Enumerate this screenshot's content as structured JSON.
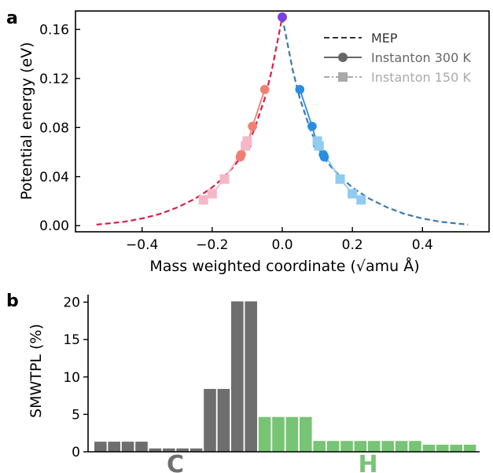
{
  "chart_data": [
    {
      "panel_label": "a",
      "type": "line",
      "xlabel": "Mass weighted coordinate (√amu Å)",
      "ylabel": "Potential energy (eV)",
      "xlim": [
        -0.59,
        0.59
      ],
      "ylim": [
        -0.005,
        0.175
      ],
      "xticks": [
        -0.4,
        -0.2,
        0.0,
        0.2,
        0.4
      ],
      "xtick_labels": [
        "−0.4",
        "−0.2",
        "0.0",
        "0.2",
        "0.4"
      ],
      "yticks": [
        0.0,
        0.04,
        0.08,
        0.12,
        0.16
      ],
      "ytick_labels": [
        "0.00",
        "0.04",
        "0.08",
        "0.12",
        "0.16"
      ],
      "legend_position": "top-right",
      "legend": [
        {
          "name": "MEP",
          "style": "dashed",
          "color": "#333333"
        },
        {
          "name": "Instanton 300 K",
          "style": "solid-circle",
          "color": "#666666"
        },
        {
          "name": "Instanton 150 K",
          "style": "dashdot-square",
          "color": "#aaaaaa"
        }
      ],
      "series": [
        {
          "name": "MEP",
          "side": "left",
          "color": "#d6204a",
          "x": [
            -0.53,
            -0.45,
            -0.4,
            -0.35,
            -0.3,
            -0.25,
            -0.22,
            -0.2,
            -0.17,
            -0.14,
            -0.12,
            -0.1,
            -0.08,
            -0.05,
            -0.03,
            0.0
          ],
          "y": [
            0.0008,
            0.0032,
            0.0058,
            0.0095,
            0.0148,
            0.0218,
            0.0272,
            0.0312,
            0.0385,
            0.0478,
            0.055,
            0.0648,
            0.0782,
            0.1038,
            0.1265,
            0.17
          ]
        },
        {
          "name": "MEP",
          "side": "right",
          "color": "#3a78b0",
          "x": [
            0.0,
            0.03,
            0.05,
            0.08,
            0.1,
            0.12,
            0.14,
            0.17,
            0.2,
            0.22,
            0.25,
            0.3,
            0.35,
            0.4,
            0.45,
            0.53
          ],
          "y": [
            0.17,
            0.1265,
            0.1038,
            0.0782,
            0.0648,
            0.055,
            0.0478,
            0.0385,
            0.0312,
            0.0272,
            0.0218,
            0.0148,
            0.0095,
            0.0058,
            0.0032,
            0.0008
          ]
        },
        {
          "name": "Instanton 300 K",
          "side": "left",
          "color": "#f07e73",
          "x": [
            -0.12,
            -0.117,
            -0.1,
            -0.085,
            -0.05
          ],
          "y": [
            0.056,
            0.058,
            0.066,
            0.081,
            0.111
          ]
        },
        {
          "name": "Instanton 300 K",
          "side": "right",
          "color": "#2a8de0",
          "x": [
            0.05,
            0.085,
            0.1,
            0.117,
            0.12
          ],
          "y": [
            0.111,
            0.081,
            0.066,
            0.058,
            0.056
          ]
        },
        {
          "name": "Instanton 150 K",
          "side": "left",
          "color": "#f5b8c8",
          "x": [
            -0.225,
            -0.2,
            -0.165,
            -0.105,
            -0.1
          ],
          "y": [
            0.021,
            0.026,
            0.038,
            0.065,
            0.069
          ]
        },
        {
          "name": "Instanton 150 K",
          "side": "right",
          "color": "#90cbf0",
          "x": [
            0.1,
            0.105,
            0.165,
            0.2,
            0.225
          ],
          "y": [
            0.069,
            0.065,
            0.038,
            0.026,
            0.021
          ]
        }
      ],
      "annotations": [
        {
          "x": 0.0,
          "y": 0.17,
          "color": "#7b3fe4",
          "marker": "circle"
        }
      ]
    },
    {
      "panel_label": "b",
      "type": "bar",
      "ylabel": "SMWTPL (%)",
      "ylim": [
        0,
        21
      ],
      "yticks": [
        0,
        5,
        10,
        15,
        20
      ],
      "ytick_labels": [
        "0",
        "5",
        "10",
        "15",
        "20"
      ],
      "groups": [
        {
          "label": "C",
          "color": "#6e6e6e",
          "values": [
            1.35,
            1.35,
            1.35,
            1.35,
            0.45,
            0.45,
            0.45,
            0.45,
            8.4,
            8.4,
            20.1,
            20.1
          ]
        },
        {
          "label": "H",
          "color": "#77c475",
          "values": [
            4.65,
            4.65,
            4.65,
            4.65,
            1.45,
            1.45,
            1.45,
            1.45,
            1.45,
            1.45,
            1.45,
            1.45,
            0.95,
            0.95,
            0.95,
            0.95
          ]
        }
      ]
    }
  ]
}
